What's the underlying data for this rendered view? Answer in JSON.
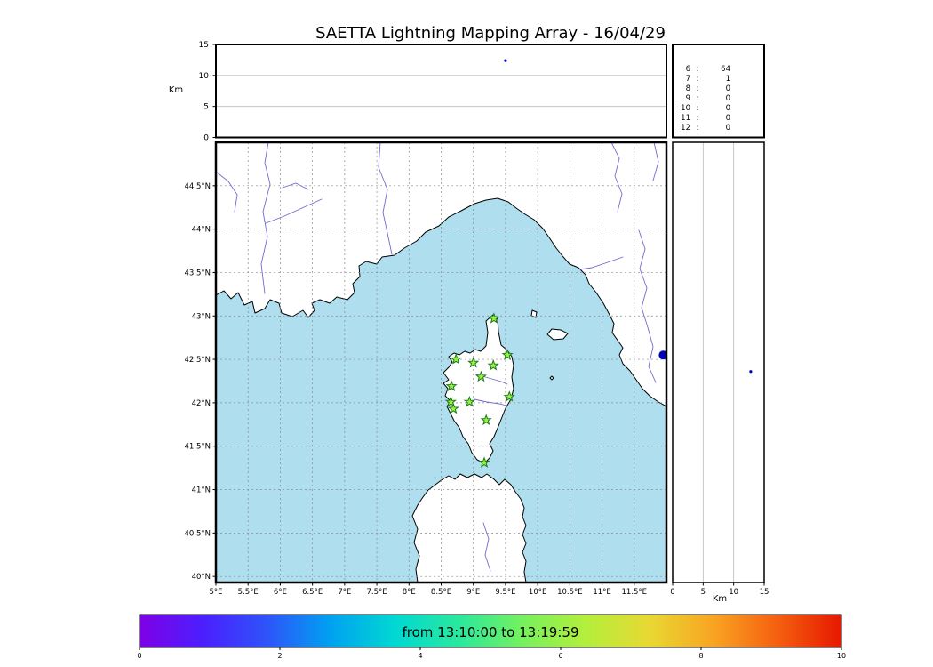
{
  "title": "SAETTA Lightning Mapping Array - 16/04/29",
  "axes": {
    "alt_axis_label": "Km",
    "right_km_label": "Km"
  },
  "colorbar": {
    "label": "from 13:10:00 to 13:19:59",
    "ticks": [
      "0",
      "2",
      "4",
      "6",
      "8",
      "10"
    ]
  },
  "colors": {
    "sea": "#afdeee",
    "land": "#ffffff",
    "river": "#6f6bd0",
    "grid": "#8a8a8a",
    "panel_grid": "#bbbbbb",
    "station_fill": "#97f23f",
    "station_edge": "#1c7a1c",
    "source": "#0000bb",
    "highlight": "#d40000",
    "colorbar_gradient": [
      "#7f00e6",
      "#4b1fff",
      "#2e54fa",
      "#00a2f0",
      "#00d8d2",
      "#2ae89e",
      "#76f05f",
      "#b4ee3c",
      "#e8d832",
      "#f8a422",
      "#f55f10",
      "#e61800"
    ]
  },
  "chart_data": {
    "type": "scatter",
    "title": "SAETTA Lightning Mapping Array - 16/04/29",
    "time_window": "from 13:10:00 to 13:19:59",
    "map": {
      "lon_range": [
        5,
        12
      ],
      "lat_range": [
        39.93,
        45.0
      ],
      "lon_ticks": [
        5,
        5.5,
        6,
        6.5,
        7,
        7.5,
        8,
        8.5,
        9,
        9.5,
        10,
        10.5,
        11,
        11.5
      ],
      "lat_ticks": [
        40,
        40.5,
        41,
        41.5,
        42,
        42.5,
        43,
        43.5,
        44,
        44.5
      ],
      "stations_lonlat": [
        [
          9.32,
          42.97
        ],
        [
          8.73,
          42.5
        ],
        [
          9.0,
          42.46
        ],
        [
          9.31,
          42.43
        ],
        [
          9.53,
          42.55
        ],
        [
          8.66,
          42.19
        ],
        [
          9.12,
          42.3
        ],
        [
          8.65,
          42.01
        ],
        [
          8.69,
          41.93
        ],
        [
          8.94,
          42.01
        ],
        [
          9.56,
          42.07
        ],
        [
          9.2,
          41.8
        ],
        [
          9.17,
          41.31
        ]
      ],
      "sources_lonlat": [
        [
          11.95,
          42.55
        ]
      ]
    },
    "alt_lon_panel": {
      "alt_range": [
        0,
        15
      ],
      "alt_ticks": [
        0,
        5,
        10,
        15
      ],
      "sources_lon_alt": [
        [
          9.5,
          12.4
        ]
      ]
    },
    "alt_lat_panel": {
      "alt_range": [
        0,
        15
      ],
      "alt_ticks": [
        0,
        5,
        10,
        15
      ],
      "sources_alt_lat": [
        [
          12.8,
          42.36
        ]
      ]
    },
    "station_counts": [
      [
        "6",
        "64"
      ],
      [
        "7",
        "1"
      ],
      [
        "8",
        "0"
      ],
      [
        "9",
        "0"
      ],
      [
        "10",
        "0"
      ],
      [
        "11",
        "0"
      ],
      [
        "12",
        "0"
      ]
    ],
    "active_row": "7",
    "colorbar_range": [
      0,
      10
    ]
  }
}
